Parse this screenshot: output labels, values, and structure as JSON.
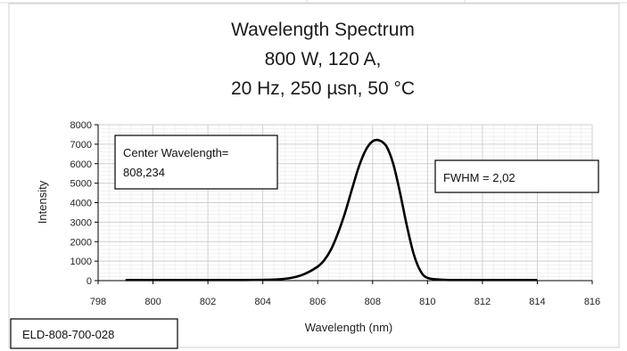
{
  "chart_data": {
    "type": "line",
    "title_lines": [
      "Wavelength Spectrum",
      "800 W, 120 A,",
      "20 Hz, 250 µsn, 50 °C"
    ],
    "xlabel": "Wavelength (nm)",
    "ylabel": "Intensity",
    "xlim": [
      798,
      816
    ],
    "ylim": [
      0,
      8000
    ],
    "xticks": [
      798,
      800,
      802,
      804,
      806,
      808,
      810,
      812,
      814,
      816
    ],
    "yticks": [
      0,
      1000,
      2000,
      3000,
      4000,
      5000,
      6000,
      7000,
      8000
    ],
    "grid": true,
    "line_color": "#000000",
    "series": [
      {
        "x": [
          799,
          800,
          801,
          802,
          803,
          804,
          804.5,
          805,
          805.5,
          806,
          806.25,
          806.5,
          806.75,
          807,
          807.25,
          807.5,
          807.75,
          808,
          808.234,
          808.5,
          808.75,
          809,
          809.25,
          809.5,
          809.75,
          810,
          810.5,
          811,
          812,
          813,
          814
        ],
        "y": [
          30,
          30,
          30,
          30,
          30,
          40,
          60,
          130,
          330,
          720,
          1070,
          1640,
          2480,
          3500,
          4700,
          5850,
          6700,
          7150,
          7200,
          6900,
          6000,
          4500,
          2800,
          1350,
          480,
          140,
          50,
          30,
          30,
          30,
          30
        ]
      }
    ],
    "annotations": [
      {
        "text_lines": [
          "Center Wavelength=",
          "808,234"
        ]
      },
      {
        "text_lines": [
          "FWHM = 2,02"
        ]
      }
    ]
  },
  "footer_label": "ELD-808-700-028"
}
